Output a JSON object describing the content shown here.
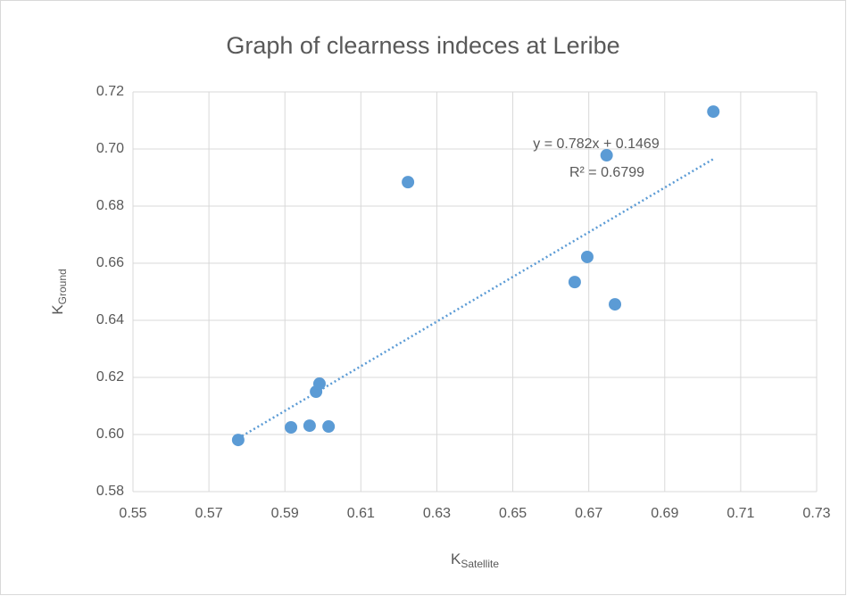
{
  "chart_data": {
    "type": "scatter",
    "title": "Graph of clearness indeces at Leribe",
    "x_label": {
      "main": "K",
      "sub": "Satellite"
    },
    "y_label": {
      "main": "K",
      "sub": "Ground"
    },
    "series": [
      {
        "name": "K",
        "color": "#5b9bd5",
        "x": [
          0.5777,
          0.5916,
          0.5965,
          0.6015,
          0.5982,
          0.5991,
          0.6224,
          0.6663,
          0.6696,
          0.6769,
          0.6747,
          0.7028
        ],
        "values": [
          0.5981,
          0.6025,
          0.6031,
          0.6028,
          0.615,
          0.6178,
          0.6884,
          0.6534,
          0.6622,
          0.6456,
          0.6978,
          0.7131
        ]
      }
    ],
    "trendline": {
      "slope": 0.782,
      "intercept": 0.1469,
      "equation": "y = 0.782x + 0.1469",
      "r2_label": "R² = 0.6799"
    },
    "xlim": [
      0.55,
      0.73
    ],
    "xticks": [
      0.55,
      0.57,
      0.59,
      0.61,
      0.63,
      0.65,
      0.67,
      0.69,
      0.71,
      0.73
    ],
    "ylim": [
      0.58,
      0.72
    ],
    "yticks": [
      0.58,
      {
        "value": 0.6,
        "label": "0.60"
      },
      0.62,
      0.64,
      0.66,
      0.68,
      {
        "value": 0.7,
        "label": "0.70"
      },
      0.72
    ],
    "grid": true
  }
}
